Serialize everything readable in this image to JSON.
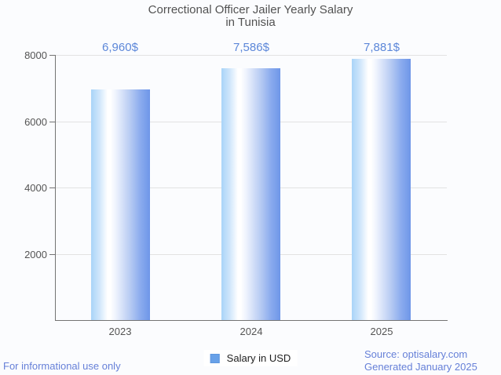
{
  "title": {
    "line1": "Correctional Officer Jailer Yearly Salary",
    "line2": "in Tunisia"
  },
  "chart_data": {
    "type": "bar",
    "title": "Correctional Officer Jailer Yearly Salary in Tunisia",
    "categories": [
      "2023",
      "2024",
      "2025"
    ],
    "series": [
      {
        "name": "Salary in USD",
        "values": [
          6960,
          7586,
          7881
        ]
      }
    ],
    "value_labels": [
      "6,960$",
      "7,586$",
      "7,881$"
    ],
    "xlabel": "",
    "ylabel": "",
    "ylim": [
      0,
      8000
    ],
    "yticks": [
      2000,
      4000,
      6000,
      8000
    ],
    "ytick_labels": [
      "2000",
      "4000",
      "6000",
      "8000"
    ],
    "grid": true,
    "legend_position": "bottom"
  },
  "legend": {
    "label": "Salary in USD"
  },
  "footer": {
    "disclaimer": "For informational use only",
    "source": "Source: optisalary.com",
    "generated": "Generated January 2025"
  },
  "colors": {
    "background": "#fbfcfe",
    "title_text": "#525252",
    "axis_text": "#545454",
    "value_label_text": "#5c87d9",
    "footer_text": "#6680d8",
    "gridline": "#e2e2e2",
    "axis_line": "#737373",
    "legend_swatch": "#68a1e8",
    "bar_gradient_left": "#a9d4f8",
    "bar_gradient_mid": "#ffffff",
    "bar_gradient_right": "#6e96e8"
  }
}
